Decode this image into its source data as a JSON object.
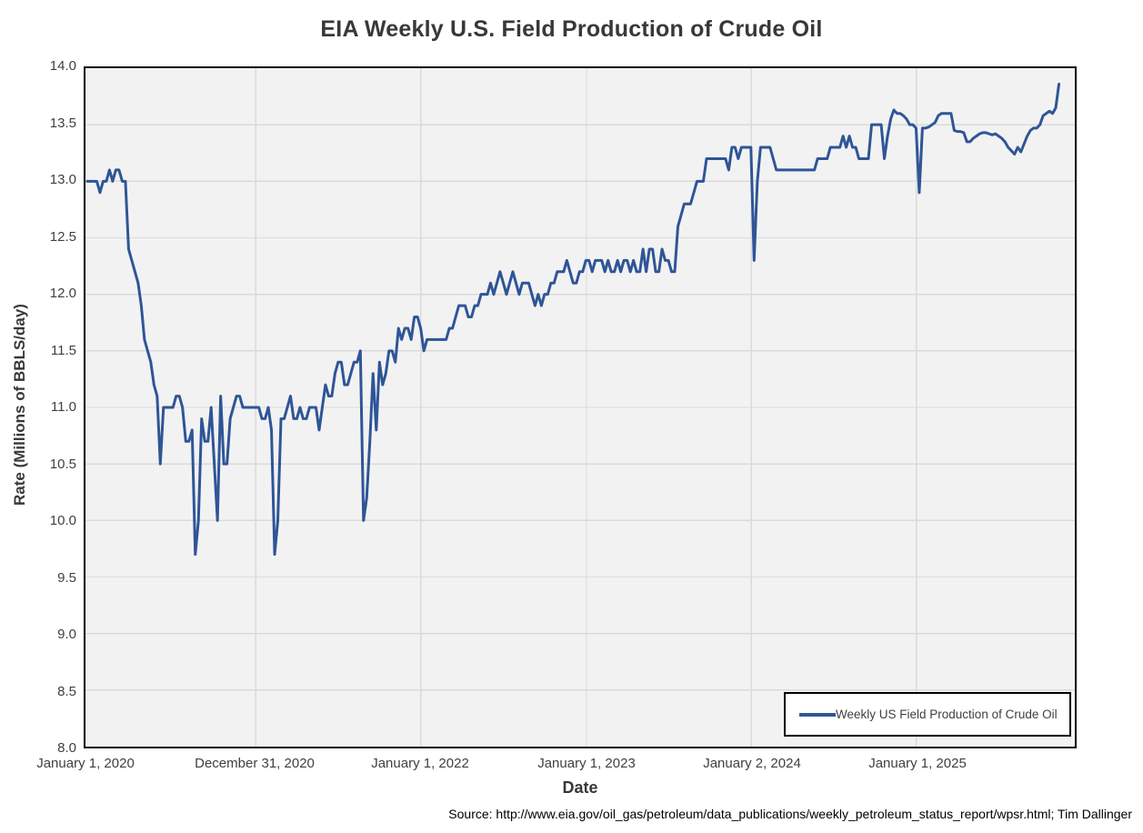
{
  "title": "EIA Weekly U.S. Field Production of Crude Oil",
  "y_axis": {
    "label": "Rate (Millions of BBLS/day)",
    "min": 8.0,
    "max": 14.0,
    "step": 0.5,
    "ticks": [
      "8.0",
      "8.5",
      "9.0",
      "9.5",
      "10.0",
      "10.5",
      "11.0",
      "11.5",
      "12.0",
      "12.5",
      "13.0",
      "13.5",
      "14.0"
    ]
  },
  "x_axis": {
    "label": "Date",
    "ticks": [
      "January 1, 2020",
      "December 31, 2020",
      "January 1, 2022",
      "January 1, 2023",
      "January 2, 2024",
      "January 1, 2025"
    ]
  },
  "legend": {
    "label": "Weekly US Field Production of Crude Oil"
  },
  "source": "Source: http://www.eia.gov/oil_gas/petroleum/data_publications/weekly_petroleum_status_report/wpsr.html; Tim Dallinger",
  "colors": {
    "line": "#2F5597",
    "plot_bg": "#F2F2F2",
    "grid": "#DADADA",
    "border": "#000000",
    "text": "#404040",
    "title_text": "#383838"
  },
  "chart_data": {
    "type": "line",
    "title": "EIA Weekly U.S. Field Production of Crude Oil",
    "xlabel": "Date",
    "ylabel": "Rate (Millions of BBLS/day)",
    "ylim": [
      8.0,
      14.0
    ],
    "y_tick_step": 0.5,
    "x_tick_labels": [
      "January 1, 2020",
      "December 31, 2020",
      "January 1, 2022",
      "January 1, 2023",
      "January 2, 2024",
      "January 1, 2025"
    ],
    "grid": true,
    "legend_position": "inside-bottom-right",
    "frequency": "weekly",
    "x_start": "week ending January 3, 2020",
    "x_end": "week ending mid-November 2025",
    "series": [
      {
        "name": "Weekly US Field Production of Crude Oil",
        "color": "#2F5597",
        "values": [
          13.0,
          13.0,
          13.0,
          13.0,
          12.9,
          13.0,
          13.0,
          13.1,
          13.0,
          13.1,
          13.1,
          13.0,
          13.0,
          12.4,
          12.3,
          12.2,
          12.1,
          11.9,
          11.6,
          11.5,
          11.4,
          11.2,
          11.1,
          10.5,
          11.0,
          11.0,
          11.0,
          11.0,
          11.1,
          11.1,
          11.0,
          10.7,
          10.7,
          10.8,
          9.7,
          10.0,
          10.9,
          10.7,
          10.7,
          11.0,
          10.5,
          10.0,
          11.1,
          10.5,
          10.5,
          10.9,
          11.0,
          11.1,
          11.1,
          11.0,
          11.0,
          11.0,
          11.0,
          11.0,
          11.0,
          10.9,
          10.9,
          11.0,
          10.8,
          9.7,
          10.0,
          10.9,
          10.9,
          11.0,
          11.1,
          10.9,
          10.9,
          11.0,
          10.9,
          10.9,
          11.0,
          11.0,
          11.0,
          10.8,
          11.0,
          11.2,
          11.1,
          11.1,
          11.3,
          11.4,
          11.4,
          11.2,
          11.2,
          11.3,
          11.4,
          11.4,
          11.5,
          10.0,
          10.2,
          10.7,
          11.3,
          10.8,
          11.4,
          11.2,
          11.3,
          11.5,
          11.5,
          11.4,
          11.7,
          11.6,
          11.7,
          11.7,
          11.6,
          11.8,
          11.8,
          11.7,
          11.5,
          11.6,
          11.6,
          11.6,
          11.6,
          11.6,
          11.6,
          11.6,
          11.7,
          11.7,
          11.8,
          11.9,
          11.9,
          11.9,
          11.8,
          11.8,
          11.9,
          11.9,
          12.0,
          12.0,
          12.0,
          12.1,
          12.0,
          12.1,
          12.2,
          12.1,
          12.0,
          12.1,
          12.2,
          12.1,
          12.0,
          12.1,
          12.1,
          12.1,
          12.0,
          11.9,
          12.0,
          11.9,
          12.0,
          12.0,
          12.1,
          12.1,
          12.2,
          12.2,
          12.2,
          12.3,
          12.2,
          12.1,
          12.1,
          12.2,
          12.2,
          12.3,
          12.3,
          12.2,
          12.3,
          12.3,
          12.3,
          12.2,
          12.3,
          12.2,
          12.2,
          12.3,
          12.2,
          12.3,
          12.3,
          12.2,
          12.3,
          12.2,
          12.2,
          12.4,
          12.2,
          12.4,
          12.4,
          12.2,
          12.2,
          12.4,
          12.3,
          12.3,
          12.2,
          12.2,
          12.6,
          12.7,
          12.8,
          12.8,
          12.8,
          12.9,
          13.0,
          13.0,
          13.0,
          13.2,
          13.2,
          13.2,
          13.2,
          13.2,
          13.2,
          13.2,
          13.1,
          13.3,
          13.3,
          13.2,
          13.3,
          13.3,
          13.3,
          13.3,
          12.3,
          13.0,
          13.3,
          13.3,
          13.3,
          13.3,
          13.2,
          13.1,
          13.1,
          13.1,
          13.1,
          13.1,
          13.1,
          13.1,
          13.1,
          13.1,
          13.1,
          13.1,
          13.1,
          13.1,
          13.2,
          13.2,
          13.2,
          13.2,
          13.3,
          13.3,
          13.3,
          13.3,
          13.4,
          13.3,
          13.4,
          13.3,
          13.3,
          13.2,
          13.2,
          13.2,
          13.2,
          13.5,
          13.5,
          13.5,
          13.5,
          13.2,
          13.4,
          13.55,
          13.63,
          13.6,
          13.6,
          13.58,
          13.55,
          13.5,
          13.5,
          13.47,
          12.9,
          13.47,
          13.47,
          13.48,
          13.5,
          13.52,
          13.58,
          13.6,
          13.6,
          13.6,
          13.6,
          13.45,
          13.44,
          13.44,
          13.43,
          13.35,
          13.35,
          13.38,
          13.4,
          13.42,
          13.43,
          13.43,
          13.42,
          13.41,
          13.42,
          13.4,
          13.38,
          13.35,
          13.3,
          13.27,
          13.24,
          13.3,
          13.26,
          13.33,
          13.4,
          13.45,
          13.47,
          13.47,
          13.5,
          13.58,
          13.6,
          13.62,
          13.6,
          13.65,
          13.86
        ]
      }
    ]
  }
}
